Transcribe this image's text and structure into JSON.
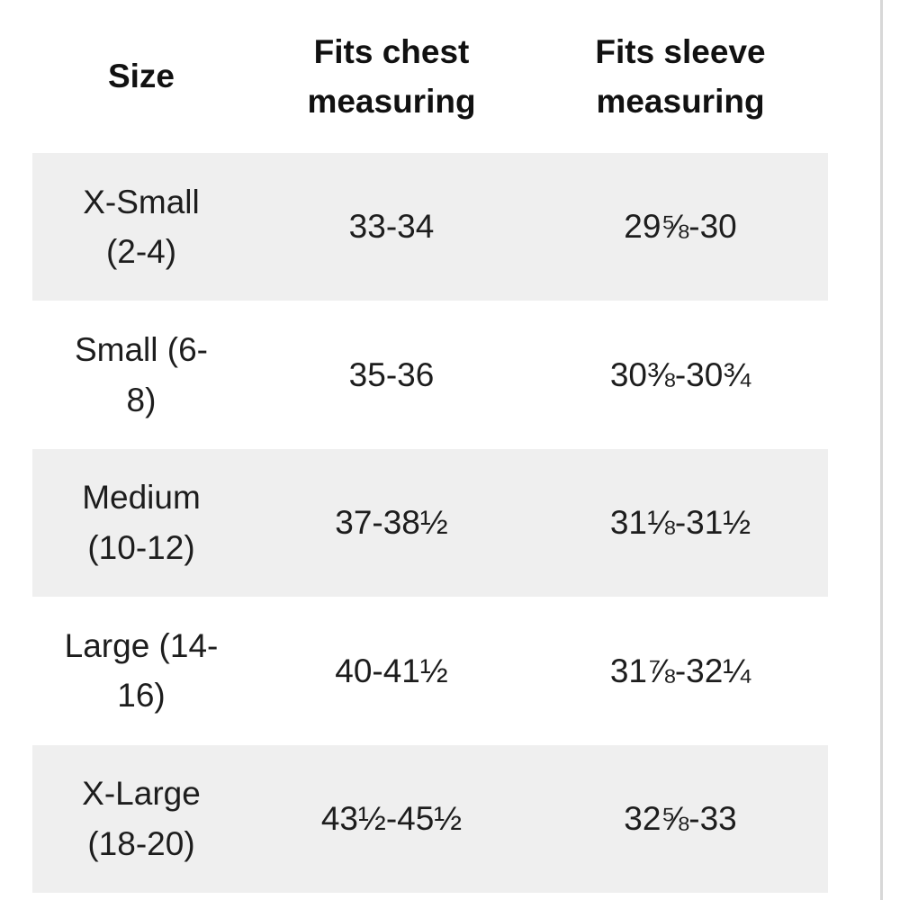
{
  "colors": {
    "background": "#ffffff",
    "stripe": "#efefef",
    "text": "#1d1d1d",
    "header_text": "#111111",
    "right_border": "#d8d8d8"
  },
  "table": {
    "headers": [
      "Size",
      "Fits chest\nmeasuring",
      "Fits sleeve\nmeasuring"
    ],
    "rows": [
      {
        "size": "X-Small\n(2-4)",
        "chest": "33-34",
        "sleeve": "29⅝-30"
      },
      {
        "size": "Small (6-\n8)",
        "chest": "35-36",
        "sleeve": "30⅜-30¾"
      },
      {
        "size": "Medium\n(10-12)",
        "chest": "37-38½",
        "sleeve": "31⅛-31½"
      },
      {
        "size": "Large (14-\n16)",
        "chest": "40-41½",
        "sleeve": "31⅞-32¼"
      },
      {
        "size": "X-Large\n(18-20)",
        "chest": "43½-45½",
        "sleeve": "32⅝-33"
      }
    ]
  }
}
